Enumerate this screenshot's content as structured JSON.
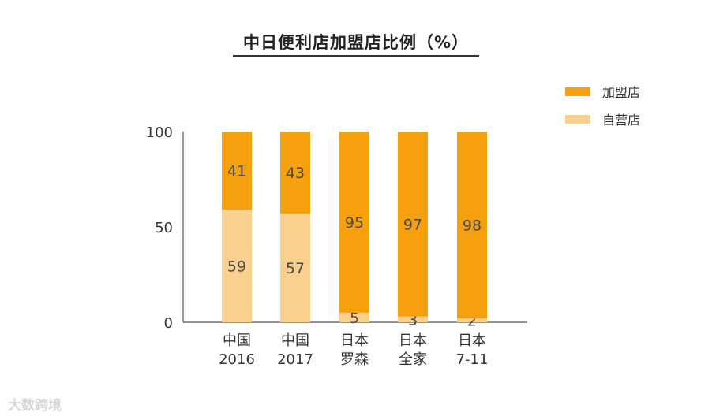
{
  "chart_data": {
    "type": "bar",
    "stacked": true,
    "title": "中日便利店加盟店比例（%）",
    "categories": [
      [
        "中国",
        "2016"
      ],
      [
        "中国",
        "2017"
      ],
      [
        "日本",
        "罗森"
      ],
      [
        "日本",
        "全家"
      ],
      [
        "日本",
        "7-11"
      ]
    ],
    "series": [
      {
        "name": "自营店",
        "color": "#F9D08E",
        "values": [
          59,
          57,
          5,
          3,
          2
        ]
      },
      {
        "name": "加盟店",
        "color": "#F5A00C",
        "values": [
          41,
          43,
          95,
          97,
          98
        ]
      }
    ],
    "legend_order": [
      "加盟店",
      "自营店"
    ],
    "yticks": [
      0,
      50,
      100
    ],
    "ylim": [
      0,
      100
    ],
    "xlabel": "",
    "ylabel": "",
    "legend_position": "top-right"
  },
  "watermark": "大数跨境"
}
